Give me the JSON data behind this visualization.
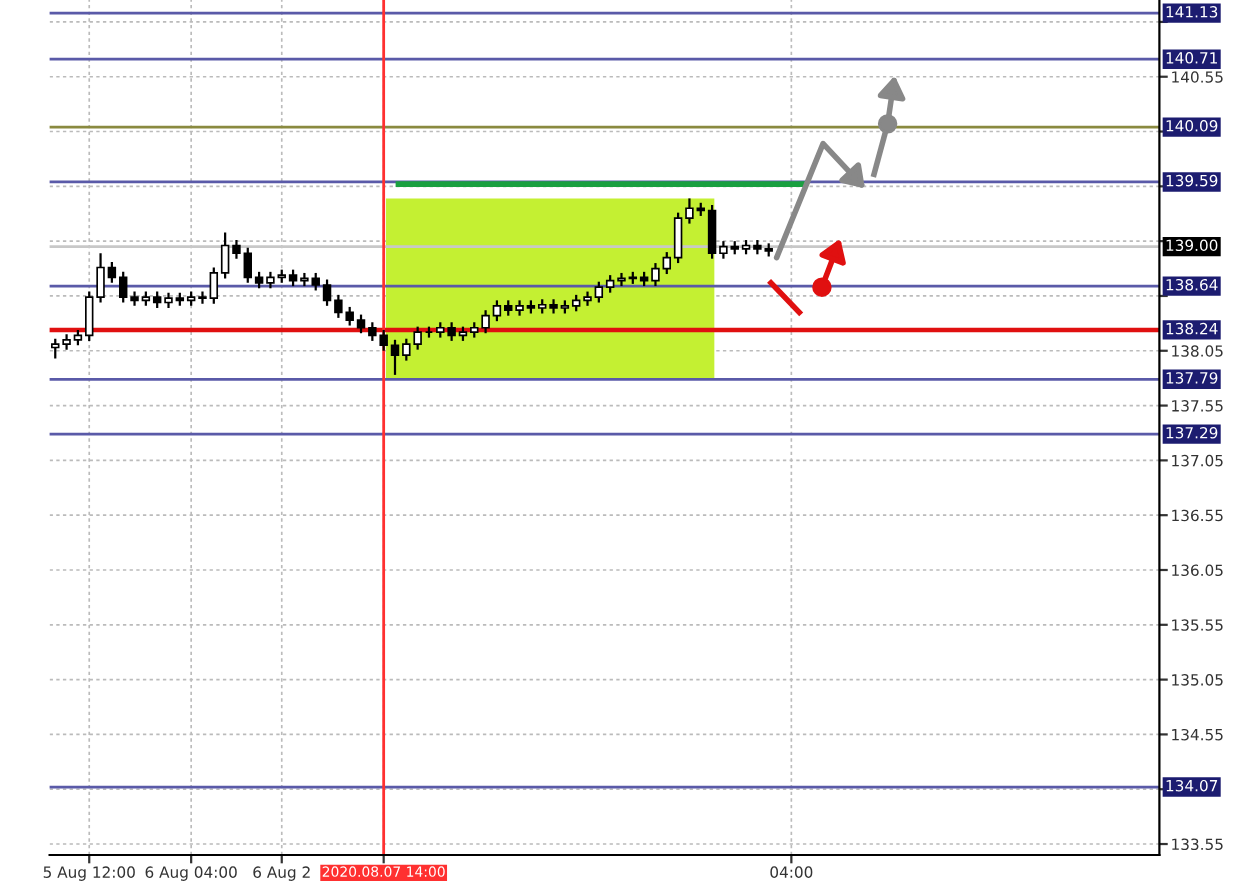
{
  "chart_data": {
    "type": "candlestick",
    "categories": [
      null,
      null,
      null,
      "5 Aug 12:00",
      null,
      null,
      null,
      null,
      null,
      null,
      null,
      null,
      "6 Aug 04:00",
      null,
      null,
      null,
      null,
      null,
      null,
      null,
      "6 Aug 2",
      null,
      null,
      null,
      null,
      null,
      null,
      null,
      null,
      "2020.08.07 14:00",
      null,
      null,
      null,
      null,
      null,
      null,
      null,
      null,
      null,
      null,
      null,
      null,
      null,
      null,
      null,
      null,
      null,
      null,
      null,
      null,
      null,
      null,
      null,
      null,
      null,
      null,
      null,
      null,
      null,
      null,
      null,
      null,
      null,
      null,
      null,
      "04:00",
      null,
      null,
      null,
      null,
      null,
      null,
      null,
      null,
      null,
      null,
      null,
      null,
      null,
      null,
      null,
      null,
      null,
      null,
      null,
      null,
      null,
      null,
      null,
      null,
      null,
      null,
      null,
      null,
      null,
      null,
      null,
      null
    ],
    "ohlc": [
      [
        138.08,
        138.16,
        137.98,
        138.11
      ],
      [
        138.11,
        138.2,
        138.06,
        138.15
      ],
      [
        138.15,
        138.24,
        138.1,
        138.19
      ],
      [
        138.19,
        138.59,
        138.14,
        138.54
      ],
      [
        138.54,
        138.94,
        138.49,
        138.81
      ],
      [
        138.81,
        138.86,
        138.67,
        138.72
      ],
      [
        138.72,
        138.77,
        138.49,
        138.54
      ],
      [
        138.54,
        138.59,
        138.46,
        138.51
      ],
      [
        138.51,
        138.59,
        138.46,
        138.54
      ],
      [
        138.54,
        138.59,
        138.44,
        138.49
      ],
      [
        138.49,
        138.58,
        138.44,
        138.53
      ],
      [
        138.53,
        138.58,
        138.46,
        138.51
      ],
      [
        138.51,
        138.59,
        138.46,
        138.54
      ],
      [
        138.54,
        138.59,
        138.48,
        138.53
      ],
      [
        138.53,
        138.81,
        138.48,
        138.76
      ],
      [
        138.76,
        139.13,
        138.71,
        139.01
      ],
      [
        139.01,
        139.06,
        138.89,
        138.94
      ],
      [
        138.94,
        138.99,
        138.67,
        138.72
      ],
      [
        138.72,
        138.77,
        138.62,
        138.67
      ],
      [
        138.67,
        138.77,
        138.62,
        138.72
      ],
      [
        138.72,
        138.79,
        138.67,
        138.74
      ],
      [
        138.74,
        138.79,
        138.64,
        138.69
      ],
      [
        138.69,
        138.76,
        138.64,
        138.71
      ],
      [
        138.71,
        138.76,
        138.6,
        138.65
      ],
      [
        138.65,
        138.7,
        138.46,
        138.51
      ],
      [
        138.51,
        138.56,
        138.35,
        138.4
      ],
      [
        138.4,
        138.45,
        138.28,
        138.33
      ],
      [
        138.33,
        138.38,
        138.21,
        138.26
      ],
      [
        138.26,
        138.31,
        138.14,
        138.19
      ],
      [
        138.19,
        138.24,
        138.05,
        138.1
      ],
      [
        138.1,
        138.15,
        137.83,
        138.01
      ],
      [
        138.01,
        138.16,
        137.96,
        138.11
      ],
      [
        138.11,
        138.27,
        138.06,
        138.22
      ],
      [
        138.22,
        138.27,
        138.17,
        138.22
      ],
      [
        138.22,
        138.31,
        138.17,
        138.26
      ],
      [
        138.26,
        138.31,
        138.14,
        138.19
      ],
      [
        138.19,
        138.27,
        138.14,
        138.22
      ],
      [
        138.22,
        138.31,
        138.17,
        138.26
      ],
      [
        138.26,
        138.42,
        138.21,
        138.37
      ],
      [
        138.37,
        138.51,
        138.32,
        138.46
      ],
      [
        138.46,
        138.51,
        138.37,
        138.42
      ],
      [
        138.42,
        138.51,
        138.37,
        138.46
      ],
      [
        138.46,
        138.51,
        138.39,
        138.44
      ],
      [
        138.44,
        138.52,
        138.39,
        138.47
      ],
      [
        138.47,
        138.52,
        138.39,
        138.44
      ],
      [
        138.44,
        138.51,
        138.39,
        138.46
      ],
      [
        138.46,
        138.56,
        138.41,
        138.51
      ],
      [
        138.51,
        138.59,
        138.46,
        138.54
      ],
      [
        138.54,
        138.68,
        138.49,
        138.63
      ],
      [
        138.63,
        138.74,
        138.58,
        138.69
      ],
      [
        138.69,
        138.76,
        138.64,
        138.71
      ],
      [
        138.71,
        138.77,
        138.66,
        138.72
      ],
      [
        138.72,
        138.77,
        138.64,
        138.69
      ],
      [
        138.69,
        138.85,
        138.64,
        138.8
      ],
      [
        138.8,
        138.95,
        138.75,
        138.9
      ],
      [
        138.9,
        139.31,
        138.85,
        139.26
      ],
      [
        139.26,
        139.44,
        139.21,
        139.35
      ],
      [
        139.35,
        139.4,
        139.28,
        139.33
      ],
      [
        139.33,
        139.38,
        138.89,
        138.94
      ],
      [
        138.94,
        139.05,
        138.89,
        139.0
      ],
      [
        139.0,
        139.05,
        138.93,
        138.98
      ],
      [
        138.98,
        139.06,
        138.93,
        139.01
      ],
      [
        139.01,
        139.06,
        138.93,
        138.98
      ],
      [
        138.98,
        139.03,
        138.91,
        138.96
      ],
      null,
      null,
      null,
      null,
      null,
      null,
      null,
      null,
      null,
      null,
      null,
      null,
      null,
      null,
      null,
      null,
      null,
      null,
      null,
      null,
      null,
      null,
      null,
      null,
      null,
      null,
      null,
      null,
      null,
      null,
      null,
      null,
      null,
      null
    ],
    "ylim": [
      133.45,
      141.25
    ],
    "yticks": [
      {
        "value": 141.05,
        "label": null
      },
      140.55,
      {
        "value": 140.05,
        "label": null
      },
      {
        "value": 139.55,
        "label": null
      },
      {
        "value": 139.05,
        "label": null
      },
      {
        "value": 138.55,
        "label": null
      },
      138.05,
      137.55,
      137.05,
      136.55,
      136.05,
      135.55,
      135.05,
      134.55,
      {
        "value": 134.05,
        "label": null
      },
      133.55
    ],
    "ref_lines": [
      {
        "axis": "y",
        "value": 141.13,
        "label": "141.13",
        "color": "#5a5aa8"
      },
      {
        "axis": "y",
        "value": 140.71,
        "label": "140.71",
        "color": "#5a5aa8"
      },
      {
        "axis": "y",
        "value": 140.09,
        "label": "140.09",
        "color": "#8a8a40"
      },
      {
        "axis": "y",
        "value": 139.59,
        "label": "139.59",
        "color": "#5a5aa8"
      },
      {
        "axis": "y",
        "value": 139.0,
        "label": "139.00",
        "color": "#c8c8c8"
      },
      {
        "axis": "y",
        "value": 138.64,
        "label": "138.64",
        "color": "#5a5aa8"
      },
      {
        "axis": "y",
        "value": 138.24,
        "label": "138.24",
        "color": "#e01010"
      },
      {
        "axis": "y",
        "value": 137.79,
        "label": "137.79",
        "color": "#5a5aa8"
      },
      {
        "axis": "y",
        "value": 137.29,
        "label": "137.29",
        "color": "#5a5aa8"
      },
      {
        "axis": "y",
        "value": 134.07,
        "label": "134.07",
        "color": "#5a5aa8"
      },
      {
        "axis": "x",
        "value": "2020.08.07 14:00",
        "color": "#ff3030"
      }
    ],
    "grid": true,
    "legend": false
  }
}
